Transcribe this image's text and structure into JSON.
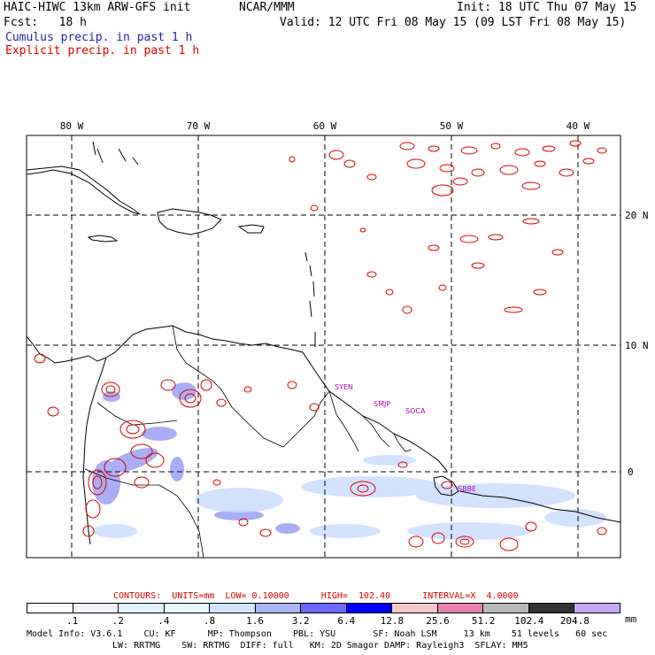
{
  "header": {
    "model_title": "HAIC-HIWC 13km ARW-GFS init",
    "org": "NCAR/MMM",
    "init": "Init: 18 UTC Thu 07 May 15",
    "fcst": "Fcst:   18 h",
    "valid": "Valid: 12 UTC Fri 08 May 15 (09 LST Fri 08 May 15)",
    "cumulus": "Cumulus precip. in past 1 h",
    "explicit": "Explicit precip. in past 1 h"
  },
  "colors": {
    "cumulus": "#2222aa",
    "explicit": "#dd0000",
    "coast": "#000000",
    "grid": "#000000"
  },
  "map": {
    "lon_labels": [
      "80 W",
      "70 W",
      "60 W",
      "50 W",
      "40 W"
    ],
    "lat_labels": [
      "20 N",
      "10 N",
      "0"
    ],
    "stations": [
      "SYEN",
      "SMJP",
      "SOCA",
      "SBBE"
    ]
  },
  "contours_info": {
    "label": "CONTOURS:  UNITS=mm  LOW= 0.10000      HIGH=  102.40      INTERVAL=X  4.0000"
  },
  "colorbar": {
    "levels": [
      ".1",
      ".2",
      ".4",
      ".8",
      "1.6",
      "3.2",
      "6.4",
      "12.8",
      "25.6",
      "51.2",
      "102.4",
      "204.8"
    ],
    "colors": [
      "#ffffff",
      "#f0f4ff",
      "#e0f0ff",
      "#e6fbfb",
      "#d0e4ff",
      "#a8b8ff",
      "#6a6aff",
      "#0000ff",
      "#f4c8c8",
      "#e880b0",
      "#b8b8b8",
      "#333333",
      "#c8a8ff"
    ],
    "unit": "mm"
  },
  "model_info": {
    "line1": "Model Info: V3.6.1    CU: KF      MP: Thompson    PBL: YSU       SF: Noah LSM     13 km    51 levels   60 sec",
    "line2": "LW: RRTMG    SW: RRTMG  DIFF: full   KM: 2D Smagor DAMP: Rayleigh3  SFLAY: MM5"
  }
}
